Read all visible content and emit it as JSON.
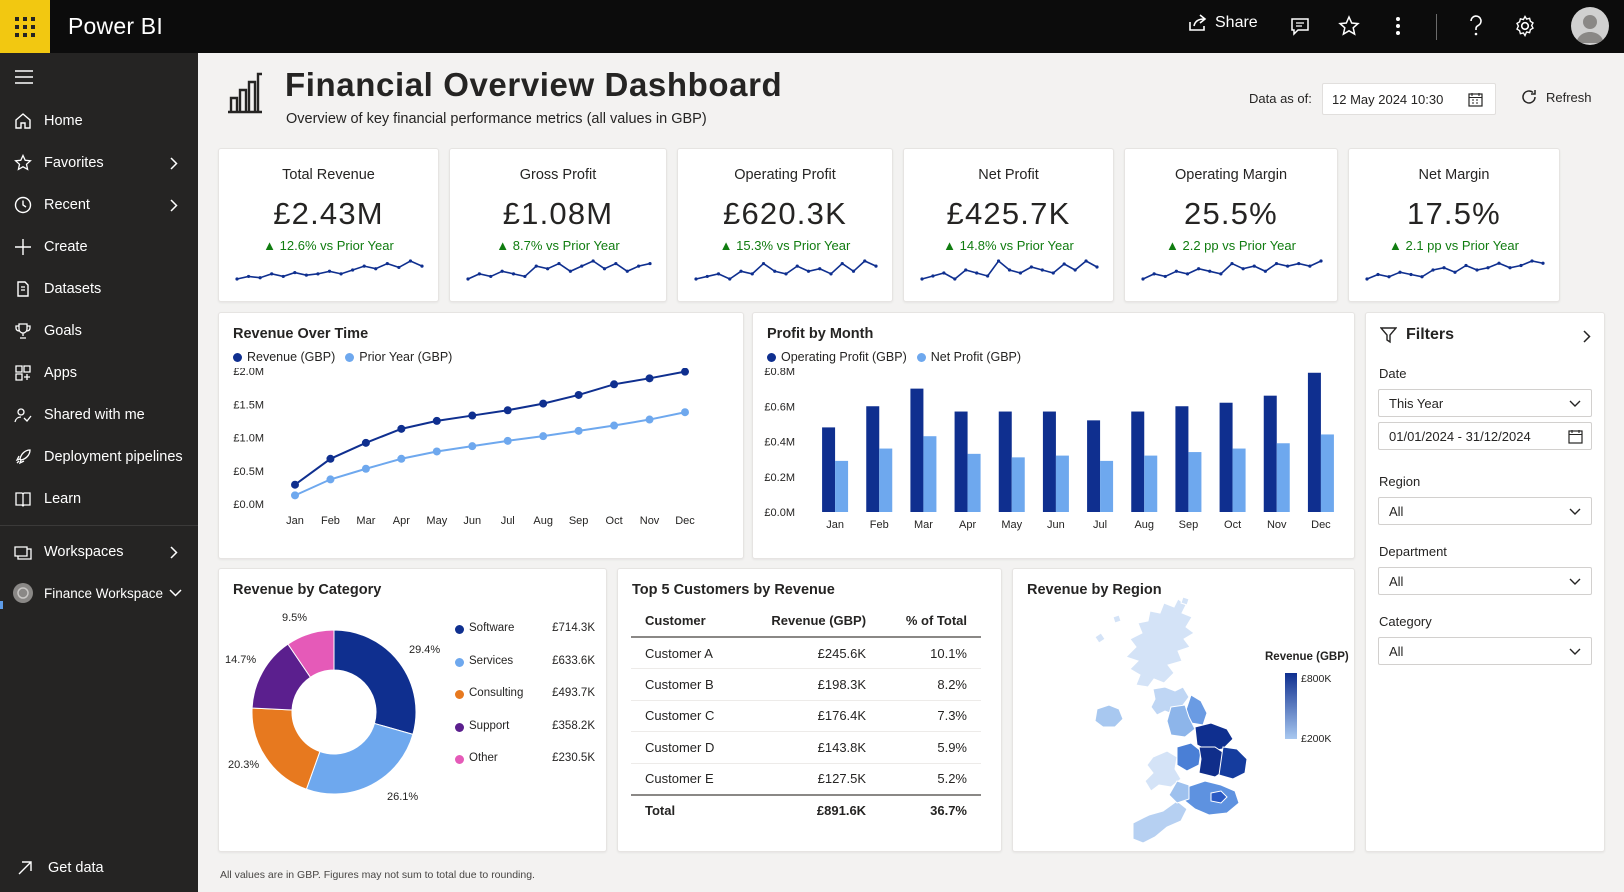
{
  "app": {
    "name": "Power BI"
  },
  "topbar": {
    "share_label": "Share"
  },
  "nav": {
    "items": [
      {
        "label": "Home",
        "icon": "home-icon"
      },
      {
        "label": "Favorites",
        "icon": "star-icon"
      },
      {
        "label": "Recent",
        "icon": "clock-icon"
      },
      {
        "label": "Create",
        "icon": "plus-icon"
      },
      {
        "label": "Datasets",
        "icon": "dataset-icon"
      },
      {
        "label": "Goals",
        "icon": "trophy-icon"
      },
      {
        "label": "Apps",
        "icon": "apps-icon"
      },
      {
        "label": "Shared with me",
        "icon": "shared-icon"
      },
      {
        "label": "Deployment pipelines",
        "icon": "rocket-icon"
      },
      {
        "label": "Learn",
        "icon": "book-icon"
      }
    ],
    "workspaces": "Workspaces",
    "current_workspace": "Finance Workspace",
    "get_data": "Get data"
  },
  "header": {
    "title": "Financial Overview Dashboard",
    "subtitle": "Overview of key financial performance metrics (all values in GBP)",
    "data_as_of_label": "Data as of:",
    "data_as_of_value": "12 May 2024 10:30",
    "refresh_label": "Refresh"
  },
  "kpis": [
    {
      "title": "Total Revenue",
      "value": "£2.43M",
      "delta": "12.6% vs Prior Year",
      "spark": [
        3,
        4,
        3.5,
        5,
        4,
        5.5,
        4.5,
        5,
        6,
        5,
        6.5,
        8,
        7,
        9,
        7.5,
        10,
        8
      ]
    },
    {
      "title": "Gross Profit",
      "value": "£1.08M",
      "delta": "8.7% vs Prior Year",
      "spark": [
        3,
        5,
        4,
        6,
        5,
        4,
        8,
        7,
        9,
        6,
        8,
        10,
        7,
        9,
        6,
        8,
        9
      ]
    },
    {
      "title": "Operating Profit",
      "value": "£620.3K",
      "delta": "15.3% vs Prior Year",
      "spark": [
        3,
        4,
        5,
        3,
        6,
        5,
        9,
        6,
        5,
        8,
        6,
        7,
        5,
        9,
        6,
        10,
        8
      ]
    },
    {
      "title": "Net Profit",
      "value": "£425.7K",
      "delta": "14.8% vs Prior Year",
      "spark": [
        4,
        5,
        6,
        4,
        7,
        6,
        5,
        10,
        7,
        6,
        8,
        7,
        6,
        9,
        7,
        10,
        8
      ]
    },
    {
      "title": "Operating Margin",
      "value": "25.5%",
      "delta": "2.2 pp vs Prior Year",
      "spark": [
        3,
        5,
        4,
        6,
        5,
        7,
        6,
        5,
        9,
        7,
        8,
        6,
        9,
        8,
        9,
        8,
        10
      ]
    },
    {
      "title": "Net Margin",
      "value": "17.5%",
      "delta": "2.1 pp vs Prior Year",
      "spark": [
        2,
        4,
        3,
        5,
        4,
        3,
        6,
        7,
        5,
        8,
        6,
        7,
        9,
        7,
        8,
        10,
        9
      ]
    }
  ],
  "colors": {
    "dark_blue": "#0f2f8f",
    "light_blue": "#6ea8ee",
    "green": "#107c10",
    "orange": "#e7791f",
    "purple": "#5b1f8e",
    "pink": "#e55ab8",
    "accent": "#f2c811"
  },
  "charts": {
    "revenue_over_time": {
      "title": "Revenue Over Time"
    },
    "profit_by_month": {
      "title": "Profit by Month"
    },
    "revenue_by_category": {
      "title": "Revenue by Category"
    },
    "top_customers": {
      "title": "Top 5 Customers by Revenue"
    },
    "revenue_by_region": {
      "title": "Revenue by Region",
      "legend_title": "Revenue (GBP)",
      "legend_high": "£800K",
      "legend_low": "£200K"
    }
  },
  "chart_data": [
    {
      "type": "line",
      "title": "Revenue Over Time",
      "categories": [
        "Jan",
        "Feb",
        "Mar",
        "Apr",
        "May",
        "Jun",
        "Jul",
        "Aug",
        "Sep",
        "Oct",
        "Nov",
        "Dec"
      ],
      "series": [
        {
          "name": "Revenue (GBP)",
          "values": [
            0.29,
            0.68,
            0.92,
            1.13,
            1.25,
            1.33,
            1.41,
            1.51,
            1.64,
            1.8,
            1.89,
            1.99
          ]
        },
        {
          "name": "Prior Year (GBP)",
          "values": [
            0.13,
            0.37,
            0.53,
            0.68,
            0.79,
            0.87,
            0.95,
            1.02,
            1.1,
            1.18,
            1.27,
            1.38
          ]
        }
      ],
      "yticks": [
        "£0.0M",
        "£0.5M",
        "£1.0M",
        "£1.5M",
        "£2.0M"
      ],
      "ylim": [
        0,
        2.0
      ],
      "grid": false,
      "legend": "top-left"
    },
    {
      "type": "bar",
      "title": "Profit by Month",
      "categories": [
        "Jan",
        "Feb",
        "Mar",
        "Apr",
        "May",
        "Jun",
        "Jul",
        "Aug",
        "Sep",
        "Oct",
        "Nov",
        "Dec"
      ],
      "series": [
        {
          "name": "Operating Profit (GBP)",
          "values": [
            0.48,
            0.6,
            0.7,
            0.57,
            0.57,
            0.57,
            0.52,
            0.57,
            0.6,
            0.62,
            0.66,
            0.79
          ]
        },
        {
          "name": "Net Profit (GBP)",
          "values": [
            0.29,
            0.36,
            0.43,
            0.33,
            0.31,
            0.32,
            0.29,
            0.32,
            0.34,
            0.36,
            0.39,
            0.44
          ]
        }
      ],
      "yticks": [
        "£0.0M",
        "£0.2M",
        "£0.4M",
        "£0.6M",
        "£0.8M"
      ],
      "ylim": [
        0,
        0.8
      ],
      "grid": false,
      "legend": "top-left"
    },
    {
      "type": "pie",
      "title": "Revenue by Category",
      "labels": [
        "Software",
        "Services",
        "Consulting",
        "Support",
        "Other"
      ],
      "values": [
        714.3,
        633.6,
        493.7,
        358.2,
        230.5
      ],
      "display_values": [
        "£714.3K",
        "£633.6K",
        "£493.7K",
        "£358.2K",
        "£230.5K"
      ],
      "percent_labels": [
        "29.4%",
        "26.1%",
        "20.3%",
        "14.7%",
        "9.5%"
      ],
      "colors": [
        "#0f2f8f",
        "#6ea8ee",
        "#e7791f",
        "#5b1f8e",
        "#e55ab8"
      ]
    },
    {
      "type": "table",
      "title": "Top 5 Customers by Revenue",
      "columns": [
        "Customer",
        "Revenue (GBP)",
        "% of Total"
      ],
      "rows": [
        [
          "Customer A",
          "£245.6K",
          "10.1%"
        ],
        [
          "Customer B",
          "£198.3K",
          "8.2%"
        ],
        [
          "Customer C",
          "£176.4K",
          "7.3%"
        ],
        [
          "Customer D",
          "£143.8K",
          "5.9%"
        ],
        [
          "Customer E",
          "£127.5K",
          "5.2%"
        ]
      ],
      "total": [
        "Total",
        "£891.6K",
        "36.7%"
      ]
    }
  ],
  "filters": {
    "title": "Filters",
    "date_label": "Date",
    "date_value": "This Year",
    "date_range": "01/01/2024 - 31/12/2024",
    "region_label": "Region",
    "region_value": "All",
    "department_label": "Department",
    "department_value": "All",
    "category_label": "Category",
    "category_value": "All"
  },
  "footnote": "All values are in GBP. Figures may not sum to total due to rounding."
}
